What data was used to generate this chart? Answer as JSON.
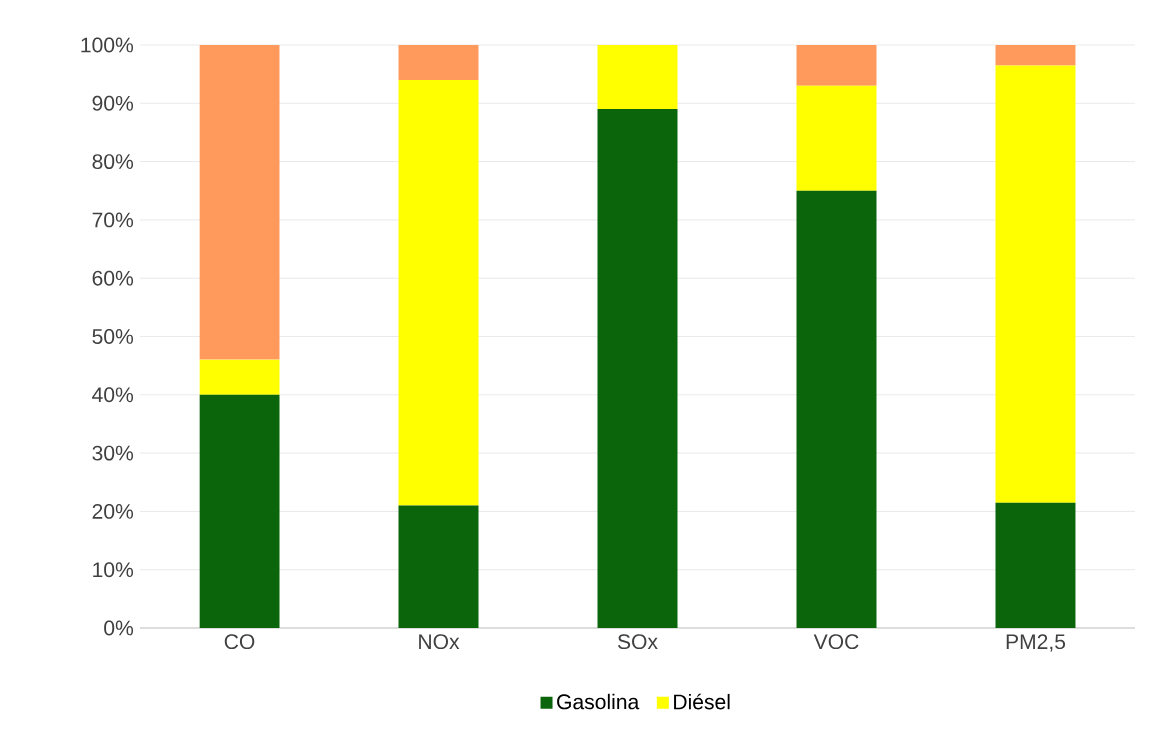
{
  "chart_data": {
    "type": "bar",
    "stacked": true,
    "categories": [
      "CO",
      "NOx",
      "SOx",
      "VOC",
      "PM2,5"
    ],
    "series": [
      {
        "name": "Gasolina",
        "color": "#0b650b",
        "values": [
          40,
          21,
          89,
          75,
          21.5
        ]
      },
      {
        "name": "Diésel",
        "color": "#ffff00",
        "values": [
          6,
          73,
          11,
          18,
          75
        ]
      },
      {
        "color": "#ff9a5c",
        "values": [
          54,
          6,
          0,
          7,
          3.5
        ]
      }
    ],
    "ylim": [
      0,
      100
    ],
    "yticks": [
      {
        "value": 0,
        "label": "0%"
      },
      {
        "value": 10,
        "label": "10%"
      },
      {
        "value": 20,
        "label": "20%"
      },
      {
        "value": 30,
        "label": "30%"
      },
      {
        "value": 40,
        "label": "40%"
      },
      {
        "value": 50,
        "label": "50%"
      },
      {
        "value": 60,
        "label": "60%"
      },
      {
        "value": 70,
        "label": "70%"
      },
      {
        "value": 80,
        "label": "80%"
      },
      {
        "value": 90,
        "label": "90%"
      },
      {
        "value": 100,
        "label": "100%"
      }
    ],
    "grid": "y",
    "legend": "bottom"
  }
}
